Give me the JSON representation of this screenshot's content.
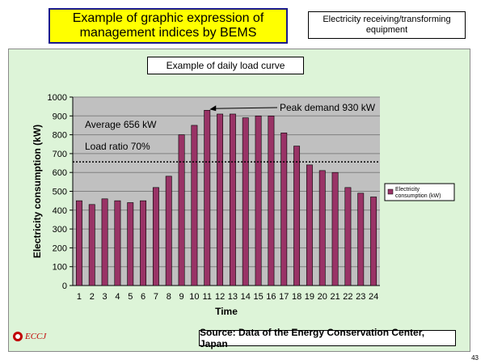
{
  "header": {
    "title": "Example of graphic expression of management indices by BEMS",
    "label": "Electricity receiving/transforming equipment"
  },
  "panel": {
    "subtitle": "Example of daily load curve",
    "source": "Source: Data of the Energy Conservation Center, Japan"
  },
  "logo": {
    "text": "ECCJ"
  },
  "page_number": "43",
  "colors": {
    "title_bg": "#ffff00",
    "title_border": "#1a1a8c",
    "panel_bg": "#ddf4d8",
    "plot_bg": "#c0c0c0",
    "bar_fill": "#993366",
    "average_line": "#000000"
  },
  "chart_data": {
    "type": "bar",
    "title": "Example of daily load curve",
    "xlabel": "Time",
    "ylabel": "Electricity consumption (kW)",
    "categories": [
      "1",
      "2",
      "3",
      "4",
      "5",
      "6",
      "7",
      "8",
      "9",
      "10",
      "11",
      "12",
      "13",
      "14",
      "15",
      "16",
      "17",
      "18",
      "19",
      "20",
      "21",
      "22",
      "23",
      "24"
    ],
    "series": [
      {
        "name": "Electricity consumption (kW)",
        "values": [
          450,
          430,
          460,
          450,
          440,
          450,
          520,
          580,
          800,
          850,
          930,
          910,
          910,
          890,
          900,
          900,
          810,
          740,
          640,
          610,
          600,
          520,
          490,
          470
        ]
      }
    ],
    "ylim": [
      0,
      1000
    ],
    "yticks": [
      0,
      100,
      200,
      300,
      400,
      500,
      600,
      700,
      800,
      900,
      1000
    ],
    "grid": true,
    "legend_position": "right",
    "reference_lines": [
      {
        "label": "Average 656 kW",
        "value": 656,
        "style": "dotted"
      }
    ],
    "annotations": [
      {
        "text": "Peak demand 930 kW",
        "x": "11",
        "y": 930
      },
      {
        "text": "Average 656 kW"
      },
      {
        "text": "Load ratio 70%"
      }
    ]
  }
}
